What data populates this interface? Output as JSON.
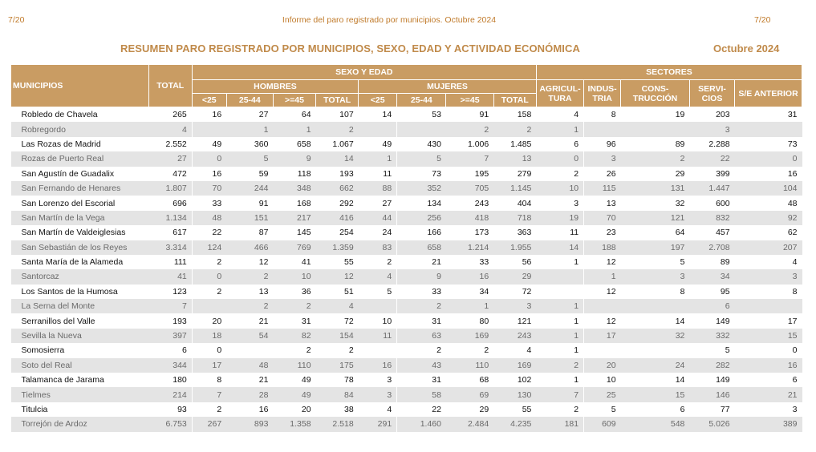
{
  "header": {
    "page_left": "7/20",
    "center": "Informe del paro registrado por municipios. Octubre 2024",
    "page_right": "7/20"
  },
  "title": "RESUMEN PARO REGISTRADO POR MUNICIPIOS, SEXO, EDAD Y ACTIVIDAD ECONÓMICA",
  "date": "Octubre 2024",
  "columns": {
    "municipios": "MUNICIPIOS",
    "total": "TOTAL",
    "sexo_edad": "SEXO Y EDAD",
    "sectores": "SECTORES",
    "hombres": "HOMBRES",
    "mujeres": "MUJERES",
    "lt25": "<25",
    "r2544": "25-44",
    "ge45": ">=45",
    "sub_total": "TOTAL",
    "agric": "AGRICUL-TURA",
    "indus": "INDUS-TRIA",
    "cons": "CONS-TRUCCIÓN",
    "serv": "SERVI-CIOS",
    "se": "S/E ANTERIOR"
  },
  "rows": [
    [
      "Robledo de Chavela",
      "265",
      "16",
      "27",
      "64",
      "107",
      "14",
      "53",
      "91",
      "158",
      "4",
      "8",
      "19",
      "203",
      "31"
    ],
    [
      "Robregordo",
      "4",
      "",
      "1",
      "1",
      "2",
      "",
      "",
      "2",
      "2",
      "1",
      "",
      "",
      "3",
      ""
    ],
    [
      "Las Rozas de Madrid",
      "2.552",
      "49",
      "360",
      "658",
      "1.067",
      "49",
      "430",
      "1.006",
      "1.485",
      "6",
      "96",
      "89",
      "2.288",
      "73"
    ],
    [
      "Rozas de Puerto Real",
      "27",
      "0",
      "5",
      "9",
      "14",
      "1",
      "5",
      "7",
      "13",
      "0",
      "3",
      "2",
      "22",
      "0"
    ],
    [
      "San Agustín de Guadalix",
      "472",
      "16",
      "59",
      "118",
      "193",
      "11",
      "73",
      "195",
      "279",
      "2",
      "26",
      "29",
      "399",
      "16"
    ],
    [
      "San Fernando de Henares",
      "1.807",
      "70",
      "244",
      "348",
      "662",
      "88",
      "352",
      "705",
      "1.145",
      "10",
      "115",
      "131",
      "1.447",
      "104"
    ],
    [
      "San Lorenzo del Escorial",
      "696",
      "33",
      "91",
      "168",
      "292",
      "27",
      "134",
      "243",
      "404",
      "3",
      "13",
      "32",
      "600",
      "48"
    ],
    [
      "San Martín de la Vega",
      "1.134",
      "48",
      "151",
      "217",
      "416",
      "44",
      "256",
      "418",
      "718",
      "19",
      "70",
      "121",
      "832",
      "92"
    ],
    [
      "San Martín de Valdeiglesias",
      "617",
      "22",
      "87",
      "145",
      "254",
      "24",
      "166",
      "173",
      "363",
      "11",
      "23",
      "64",
      "457",
      "62"
    ],
    [
      "San Sebastián de los Reyes",
      "3.314",
      "124",
      "466",
      "769",
      "1.359",
      "83",
      "658",
      "1.214",
      "1.955",
      "14",
      "188",
      "197",
      "2.708",
      "207"
    ],
    [
      "Santa María de la Alameda",
      "111",
      "2",
      "12",
      "41",
      "55",
      "2",
      "21",
      "33",
      "56",
      "1",
      "12",
      "5",
      "89",
      "4"
    ],
    [
      "Santorcaz",
      "41",
      "0",
      "2",
      "10",
      "12",
      "4",
      "9",
      "16",
      "29",
      "",
      "1",
      "3",
      "34",
      "3"
    ],
    [
      "Los Santos de la Humosa",
      "123",
      "2",
      "13",
      "36",
      "51",
      "5",
      "33",
      "34",
      "72",
      "",
      "12",
      "8",
      "95",
      "8"
    ],
    [
      "La Serna del Monte",
      "7",
      "",
      "2",
      "2",
      "4",
      "",
      "2",
      "1",
      "3",
      "1",
      "",
      "",
      "6",
      ""
    ],
    [
      "Serranillos del Valle",
      "193",
      "20",
      "21",
      "31",
      "72",
      "10",
      "31",
      "80",
      "121",
      "1",
      "12",
      "14",
      "149",
      "17"
    ],
    [
      "Sevilla la Nueva",
      "397",
      "18",
      "54",
      "82",
      "154",
      "11",
      "63",
      "169",
      "243",
      "1",
      "17",
      "32",
      "332",
      "15"
    ],
    [
      "Somosierra",
      "6",
      "0",
      "",
      "2",
      "2",
      "",
      "2",
      "2",
      "4",
      "1",
      "",
      "",
      "5",
      "0"
    ],
    [
      "Soto del Real",
      "344",
      "17",
      "48",
      "110",
      "175",
      "16",
      "43",
      "110",
      "169",
      "2",
      "20",
      "24",
      "282",
      "16"
    ],
    [
      "Talamanca de Jarama",
      "180",
      "8",
      "21",
      "49",
      "78",
      "3",
      "31",
      "68",
      "102",
      "1",
      "10",
      "14",
      "149",
      "6"
    ],
    [
      "Tielmes",
      "214",
      "7",
      "28",
      "49",
      "84",
      "3",
      "58",
      "69",
      "130",
      "7",
      "25",
      "15",
      "146",
      "21"
    ],
    [
      "Titulcia",
      "93",
      "2",
      "16",
      "20",
      "38",
      "4",
      "22",
      "29",
      "55",
      "2",
      "5",
      "6",
      "77",
      "3"
    ],
    [
      "Torrejón de Ardoz",
      "6.753",
      "267",
      "893",
      "1.358",
      "2.518",
      "291",
      "1.460",
      "2.484",
      "4.235",
      "181",
      "609",
      "548",
      "5.026",
      "389"
    ]
  ]
}
